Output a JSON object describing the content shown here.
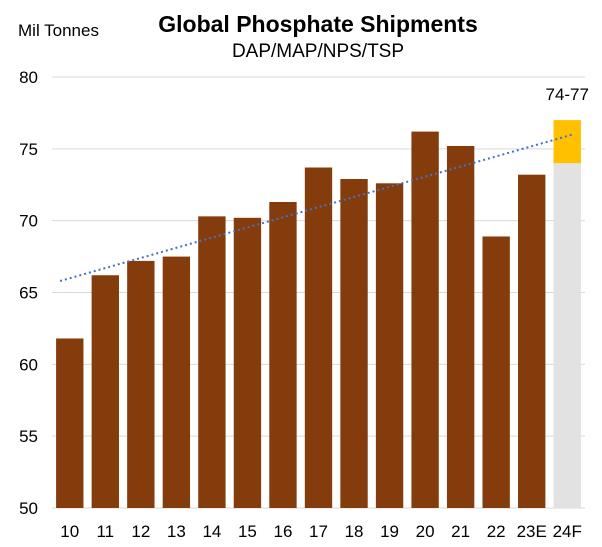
{
  "chart_data": {
    "type": "bar",
    "title": "Global Phosphate Shipments",
    "subtitle": "DAP/MAP/NPS/TSP",
    "ylabel": "Mil Tonnes",
    "ylim": [
      50,
      80
    ],
    "yticks": [
      50,
      55,
      60,
      65,
      70,
      75,
      80
    ],
    "grid": "horizontal",
    "categories": [
      "10",
      "11",
      "12",
      "13",
      "14",
      "15",
      "16",
      "17",
      "18",
      "19",
      "20",
      "21",
      "22",
      "23E",
      "24F"
    ],
    "values": [
      61.8,
      66.2,
      67.2,
      67.5,
      70.3,
      70.2,
      71.3,
      73.7,
      72.9,
      72.6,
      76.2,
      75.2,
      68.9,
      73.2,
      null
    ],
    "forecast": {
      "category": "24F",
      "low": 74,
      "high": 77,
      "label": "74-77"
    },
    "trendline": {
      "style": "dotted",
      "start": 65.8,
      "end": 76.0
    },
    "colors": {
      "bar": "#843c0c",
      "forecast_base": "#e2e2e2",
      "forecast_range": "#ffc000",
      "trendline": "#4472c4",
      "grid": "#d9d9d9"
    }
  }
}
